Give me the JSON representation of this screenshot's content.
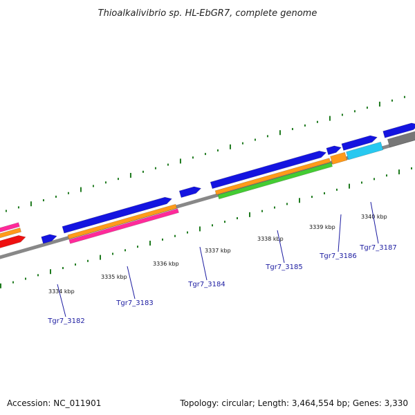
{
  "title": "Thioalkalivibrio sp. HL-EbGR7, complete genome",
  "footer": {
    "accession": "Accession: NC_011901",
    "summary": "Topology: circular; Length: 3,464,554 bp; Genes: 3,330"
  },
  "colors": {
    "forward_gene": "#1414e0",
    "label": "#1a1aa0",
    "tick": "#1e7a1e",
    "backbone": "#888888",
    "pink": "#ff2a9a",
    "orange": "#ff9a1a",
    "green": "#44cc33",
    "cyan": "#28c8f0",
    "gray_gene": "#777777",
    "red_gene": "#ee1111"
  },
  "kbp_labels": [
    "3334 kbp",
    "3335 kbp",
    "3336 kbp",
    "3337 kbp",
    "3338 kbp",
    "3339 kbp",
    "3340 kbp"
  ],
  "gene_labels": [
    "Tgr7_3182",
    "Tgr7_3183",
    "Tgr7_3184",
    "Tgr7_3185",
    "Tgr7_3186",
    "Tgr7_3187"
  ]
}
